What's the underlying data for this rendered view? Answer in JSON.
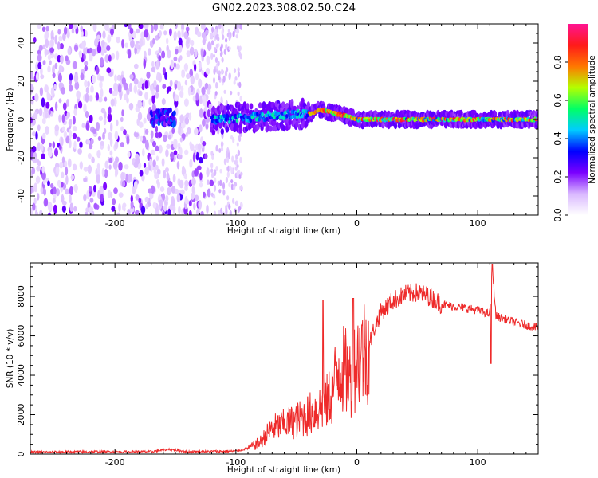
{
  "title": "GN02.2023.308.02.50.C24",
  "chart_data": [
    {
      "type": "heatmap",
      "xlabel": "Height of straight line (km)",
      "ylabel": "Frequency (Hz)",
      "xlim": [
        -270,
        150
      ],
      "ylim": [
        -50,
        50
      ],
      "x_ticks": [
        -200,
        -100,
        0,
        100
      ],
      "y_ticks": [
        -40,
        -20,
        0,
        20,
        40
      ],
      "colorbar": {
        "label": "Normalized spectral amplitude",
        "range": [
          0,
          1
        ],
        "ticks": [
          "0.0",
          "0.2",
          "0.4",
          "0.6",
          "0.8"
        ],
        "colors": [
          "#ffffff",
          "#d9b8ff",
          "#7a00ff",
          "#0000ff",
          "#00ccff",
          "#00ff66",
          "#b4ff00",
          "#ff7700",
          "#ff1a1a",
          "#ff1493"
        ]
      },
      "regions": [
        {
          "x_range": [
            -270,
            -120
          ],
          "y_range": [
            -50,
            50
          ],
          "amplitude": "0.05-0.25",
          "note": ""
        },
        {
          "x_range": [
            -120,
            -95
          ],
          "y_range": [
            -50,
            50
          ],
          "amplitude": "0.0-0.1",
          "note": ""
        },
        {
          "x_range": [
            -170,
            -150
          ],
          "y_range": [
            -3,
            6
          ],
          "amplitude": "0.2-0.5"
        },
        {
          "x_range": [
            -120,
            -40
          ],
          "y_range": [
            -8,
            9
          ],
          "amplitude": "0.2-0.5"
        },
        {
          "x_range": [
            -40,
            0
          ],
          "y_range": [
            -3,
            7
          ],
          "amplitude": "0.5-0.95"
        },
        {
          "x_range": [
            0,
            150
          ],
          "y_range": [
            -3,
            3
          ],
          "amplitude": "0.3-0.95"
        }
      ],
      "ridge": {
        "x": [
          -120,
          -40,
          -30,
          -10,
          0,
          150
        ],
        "y": [
          0,
          3,
          5,
          2,
          0,
          0
        ]
      }
    },
    {
      "type": "line",
      "xlabel": "Height of straight line (km)",
      "ylabel": "SNR (10 * v/v)",
      "xlim": [
        -270,
        150
      ],
      "ylim": [
        0,
        9700
      ],
      "x_ticks": [
        -200,
        -100,
        0,
        100
      ],
      "y_ticks": [
        0,
        2000,
        4000,
        6000,
        8000
      ],
      "color": "#ee2a2a",
      "series": [
        {
          "x": [
            -270,
            -220,
            -170,
            -155,
            -140,
            -100,
            -90,
            -80,
            -70,
            -60,
            -50,
            -40,
            -30,
            -25,
            -20,
            -15,
            -10,
            -5,
            0,
            5,
            10,
            15,
            20,
            30,
            40,
            50,
            60,
            70,
            80,
            90,
            100,
            105,
            110,
            112,
            115,
            120,
            130,
            140,
            150
          ],
          "values": [
            100,
            120,
            120,
            250,
            120,
            150,
            300,
            600,
            1300,
            1500,
            1700,
            2000,
            2400,
            2600,
            3200,
            4500,
            4200,
            3800,
            4800,
            5200,
            5500,
            6500,
            7200,
            7800,
            8100,
            8200,
            8000,
            7600,
            7500,
            7400,
            7300,
            7200,
            7100,
            9600,
            7000,
            6900,
            6700,
            6550,
            6400
          ]
        }
      ],
      "spikes": [
        {
          "x": -28,
          "value": 7800
        },
        {
          "x": -3,
          "value": 7900
        },
        {
          "x": 112,
          "value": 9600
        },
        {
          "x": 111,
          "value": 4600
        }
      ]
    }
  ]
}
